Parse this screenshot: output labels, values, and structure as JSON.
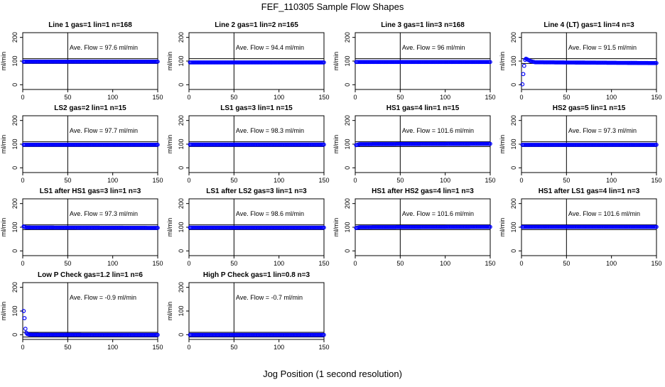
{
  "figure": {
    "title": "FEF_110305  Sample Flow Shapes",
    "xlabel": "Jog Position (1 second resolution)"
  },
  "chart_data": [
    {
      "type": "scatter",
      "title": "Line 1 gas=1 lin=1 n=168",
      "ylabel": "ml/min",
      "annotation": "Ave. Flow = 97.6  ml/min",
      "xlim": [
        0,
        150
      ],
      "ylim": [
        -20,
        220
      ],
      "xticks": [
        0,
        50,
        100,
        150
      ],
      "yticks": [
        0,
        100,
        200
      ],
      "series": [
        {
          "name": "flow",
          "color": "#0000ff",
          "x": [
            1,
            150
          ],
          "y": [
            97.6,
            97.6
          ]
        }
      ],
      "reference_lines": {
        "vertical_x": 50,
        "horizontal_y": [
          90,
          110
        ]
      }
    },
    {
      "type": "scatter",
      "title": "Line 2 gas=1 lin=2 n=165",
      "ylabel": "ml/min",
      "annotation": "Ave. Flow = 94.4  ml/min",
      "xlim": [
        0,
        150
      ],
      "ylim": [
        -20,
        220
      ],
      "xticks": [
        0,
        50,
        100,
        150
      ],
      "yticks": [
        0,
        100,
        200
      ],
      "series": [
        {
          "name": "flow",
          "color": "#0000ff",
          "x": [
            1,
            150
          ],
          "y": [
            94.4,
            94.4
          ]
        }
      ],
      "reference_lines": {
        "vertical_x": 50,
        "horizontal_y": [
          90,
          110
        ]
      }
    },
    {
      "type": "scatter",
      "title": "Line 3 gas=1 lin=3 n=168",
      "ylabel": "ml/min",
      "annotation": "Ave. Flow = 96  ml/min",
      "xlim": [
        0,
        150
      ],
      "ylim": [
        -20,
        220
      ],
      "xticks": [
        0,
        50,
        100,
        150
      ],
      "yticks": [
        0,
        100,
        200
      ],
      "series": [
        {
          "name": "flow",
          "color": "#0000ff",
          "x": [
            1,
            150
          ],
          "y": [
            96,
            96
          ]
        }
      ],
      "reference_lines": {
        "vertical_x": 50,
        "horizontal_y": [
          90,
          110
        ]
      }
    },
    {
      "type": "scatter",
      "title": "Line 4 (LT) gas=1 lin=4 n=3",
      "ylabel": "ml/min",
      "annotation": "Ave. Flow = 91.5  ml/min",
      "xlim": [
        0,
        150
      ],
      "ylim": [
        -20,
        220
      ],
      "xticks": [
        0,
        50,
        100,
        150
      ],
      "yticks": [
        0,
        100,
        200
      ],
      "series": [
        {
          "name": "flow",
          "color": "#0000ff",
          "x": [
            1,
            2,
            3,
            4,
            5,
            6,
            8,
            10,
            15,
            150
          ],
          "y": [
            2,
            45,
            80,
            105,
            110,
            108,
            104,
            100,
            95,
            91.5
          ]
        }
      ],
      "reference_lines": {
        "vertical_x": 50,
        "horizontal_y": [
          90,
          110
        ]
      }
    },
    {
      "type": "scatter",
      "title": "LS2 gas=2 lin=1 n=15",
      "ylabel": "ml/min",
      "annotation": "Ave. Flow = 97.7  ml/min",
      "xlim": [
        0,
        150
      ],
      "ylim": [
        -20,
        220
      ],
      "xticks": [
        0,
        50,
        100,
        150
      ],
      "yticks": [
        0,
        100,
        200
      ],
      "series": [
        {
          "name": "flow",
          "color": "#0000ff",
          "x": [
            1,
            150
          ],
          "y": [
            97.7,
            97.7
          ]
        }
      ],
      "reference_lines": {
        "vertical_x": 50,
        "horizontal_y": [
          90,
          110
        ]
      }
    },
    {
      "type": "scatter",
      "title": "LS1 gas=3 lin=1 n=15",
      "ylabel": "ml/min",
      "annotation": "Ave. Flow = 98.3  ml/min",
      "xlim": [
        0,
        150
      ],
      "ylim": [
        -20,
        220
      ],
      "xticks": [
        0,
        50,
        100,
        150
      ],
      "yticks": [
        0,
        100,
        200
      ],
      "series": [
        {
          "name": "flow",
          "color": "#0000ff",
          "x": [
            1,
            150
          ],
          "y": [
            98.3,
            98.3
          ]
        }
      ],
      "reference_lines": {
        "vertical_x": 50,
        "horizontal_y": [
          90,
          110
        ]
      }
    },
    {
      "type": "scatter",
      "title": "HS1 gas=4 lin=1 n=15",
      "ylabel": "ml/min",
      "annotation": "Ave. Flow = 101.6  ml/min",
      "xlim": [
        0,
        150
      ],
      "ylim": [
        -20,
        220
      ],
      "xticks": [
        0,
        50,
        100,
        150
      ],
      "yticks": [
        0,
        100,
        200
      ],
      "series": [
        {
          "name": "flow",
          "color": "#0000ff",
          "x": [
            1,
            5,
            150
          ],
          "y": [
            96,
            100,
            101.6
          ]
        }
      ],
      "reference_lines": {
        "vertical_x": 50,
        "horizontal_y": [
          90,
          110
        ]
      }
    },
    {
      "type": "scatter",
      "title": "HS2 gas=5 lin=1 n=15",
      "ylabel": "ml/min",
      "annotation": "Ave. Flow = 97.3  ml/min",
      "xlim": [
        0,
        150
      ],
      "ylim": [
        -20,
        220
      ],
      "xticks": [
        0,
        50,
        100,
        150
      ],
      "yticks": [
        0,
        100,
        200
      ],
      "series": [
        {
          "name": "flow",
          "color": "#0000ff",
          "x": [
            1,
            150
          ],
          "y": [
            97.3,
            97.3
          ]
        }
      ],
      "reference_lines": {
        "vertical_x": 50,
        "horizontal_y": [
          90,
          110
        ]
      }
    },
    {
      "type": "scatter",
      "title": "LS1 after HS1 gas=3 lin=1 n=3",
      "ylabel": "ml/min",
      "annotation": "Ave. Flow = 97.3  ml/min",
      "xlim": [
        0,
        150
      ],
      "ylim": [
        -20,
        220
      ],
      "xticks": [
        0,
        50,
        100,
        150
      ],
      "yticks": [
        0,
        100,
        200
      ],
      "series": [
        {
          "name": "flow",
          "color": "#0000ff",
          "x": [
            1,
            4,
            150
          ],
          "y": [
            103,
            99,
            97.3
          ]
        }
      ],
      "reference_lines": {
        "vertical_x": 50,
        "horizontal_y": [
          90,
          110
        ]
      }
    },
    {
      "type": "scatter",
      "title": "LS1 after LS2 gas=3 lin=1 n=3",
      "ylabel": "ml/min",
      "annotation": "Ave. Flow = 98.6  ml/min",
      "xlim": [
        0,
        150
      ],
      "ylim": [
        -20,
        220
      ],
      "xticks": [
        0,
        50,
        100,
        150
      ],
      "yticks": [
        0,
        100,
        200
      ],
      "series": [
        {
          "name": "flow",
          "color": "#0000ff",
          "x": [
            1,
            150
          ],
          "y": [
            98.6,
            98.6
          ]
        }
      ],
      "reference_lines": {
        "vertical_x": 50,
        "horizontal_y": [
          90,
          110
        ]
      }
    },
    {
      "type": "scatter",
      "title": "HS1 after HS2 gas=4 lin=1 n=3",
      "ylabel": "ml/min",
      "annotation": "Ave. Flow = 101.6  ml/min",
      "xlim": [
        0,
        150
      ],
      "ylim": [
        -20,
        220
      ],
      "xticks": [
        0,
        50,
        100,
        150
      ],
      "yticks": [
        0,
        100,
        200
      ],
      "series": [
        {
          "name": "flow",
          "color": "#0000ff",
          "x": [
            1,
            5,
            150
          ],
          "y": [
            97,
            100,
            101.6
          ]
        }
      ],
      "reference_lines": {
        "vertical_x": 50,
        "horizontal_y": [
          90,
          110
        ]
      }
    },
    {
      "type": "scatter",
      "title": "HS1 after LS1 gas=4 lin=1 n=3",
      "ylabel": "ml/min",
      "annotation": "Ave. Flow = 101.6  ml/min",
      "xlim": [
        0,
        150
      ],
      "ylim": [
        -20,
        220
      ],
      "xticks": [
        0,
        50,
        100,
        150
      ],
      "yticks": [
        0,
        100,
        200
      ],
      "series": [
        {
          "name": "flow",
          "color": "#0000ff",
          "x": [
            1,
            150
          ],
          "y": [
            101.6,
            101.6
          ]
        }
      ],
      "reference_lines": {
        "vertical_x": 50,
        "horizontal_y": [
          90,
          110
        ]
      }
    },
    {
      "type": "scatter",
      "title": "Low P Check gas=1.2 lin=1 n=6",
      "ylabel": "ml/min",
      "annotation": "Ave. Flow = -0.9  ml/min",
      "xlim": [
        0,
        150
      ],
      "ylim": [
        -20,
        220
      ],
      "xticks": [
        0,
        50,
        100,
        150
      ],
      "yticks": [
        0,
        100,
        200
      ],
      "series": [
        {
          "name": "flow",
          "color": "#0000ff",
          "x": [
            1,
            2,
            3,
            4,
            5,
            7,
            10,
            150
          ],
          "y": [
            100,
            70,
            25,
            8,
            3,
            1,
            0,
            -0.9
          ]
        }
      ],
      "reference_lines": {
        "vertical_x": 50,
        "horizontal_y": [
          -10,
          10
        ]
      }
    },
    {
      "type": "scatter",
      "title": "High P Check gas=1 lin=0.8 n=3",
      "ylabel": "ml/min",
      "annotation": "Ave. Flow = -0.7  ml/min",
      "xlim": [
        0,
        150
      ],
      "ylim": [
        -20,
        220
      ],
      "xticks": [
        0,
        50,
        100,
        150
      ],
      "yticks": [
        0,
        100,
        200
      ],
      "series": [
        {
          "name": "flow",
          "color": "#0000ff",
          "x": [
            1,
            150
          ],
          "y": [
            -0.7,
            -0.7
          ]
        }
      ],
      "reference_lines": {
        "vertical_x": 50,
        "horizontal_y": [
          -10,
          10
        ]
      }
    }
  ]
}
